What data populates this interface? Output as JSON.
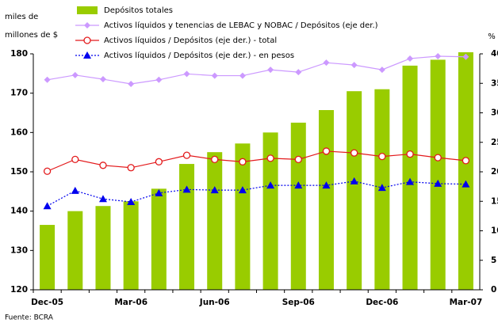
{
  "chart_data": {
    "type": "bar",
    "y_label_lines": [
      "miles de",
      "millones de $"
    ],
    "y2_label": "%",
    "source": "Fuente: BCRA",
    "categories": [
      "Dec-05",
      null,
      null,
      "Mar-06",
      null,
      null,
      "Jun-06",
      null,
      null,
      "Sep-06",
      null,
      null,
      "Dec-06",
      null,
      null,
      "Mar-07"
    ],
    "series": [
      {
        "name": "Depósitos totales",
        "type": "bar",
        "color": "#99cc00",
        "values": [
          136.5,
          140,
          141.3,
          142.5,
          145.7,
          152,
          155,
          157.2,
          160,
          162.5,
          165.7,
          170.5,
          171,
          177,
          178.5,
          180.4
        ]
      },
      {
        "name": "Activos líquidos y tenencias de LEBAC y NOBAC / Depósitos (eje der.)",
        "type": "line",
        "axis": "y2",
        "color": "#cc99ff",
        "marker": "diamond",
        "dash": false,
        "values": [
          35.6,
          36.4,
          35.7,
          34.9,
          35.6,
          36.6,
          36.3,
          36.3,
          37.3,
          36.9,
          38.5,
          38.1,
          37.3,
          39.2,
          39.6,
          39.5
        ]
      },
      {
        "name": "Activos líquidos / Depósitos (eje der.) - total",
        "type": "line",
        "axis": "y2",
        "color": "#e31a1c",
        "marker": "circle",
        "dash": false,
        "values": [
          20.1,
          22.1,
          21.1,
          20.7,
          21.7,
          22.8,
          22.1,
          21.7,
          22.3,
          22.1,
          23.5,
          23.2,
          22.6,
          23.0,
          22.4,
          21.9
        ]
      },
      {
        "name": "Activos líquidos / Depósitos (eje der.) - en pesos",
        "type": "line",
        "axis": "y2",
        "color": "#0000ee",
        "marker": "triangle",
        "dash": true,
        "values": [
          14.2,
          16.8,
          15.4,
          14.9,
          16.4,
          17.0,
          16.9,
          16.9,
          17.7,
          17.7,
          17.7,
          18.4,
          17.3,
          18.3,
          18.0,
          17.9
        ]
      }
    ],
    "ylim": [
      120,
      180
    ],
    "yticks": [
      120,
      130,
      140,
      150,
      160,
      170,
      180
    ],
    "y2lim": [
      0,
      40
    ],
    "y2ticks": [
      0,
      5,
      10,
      15,
      20,
      25,
      30,
      35,
      40
    ]
  }
}
